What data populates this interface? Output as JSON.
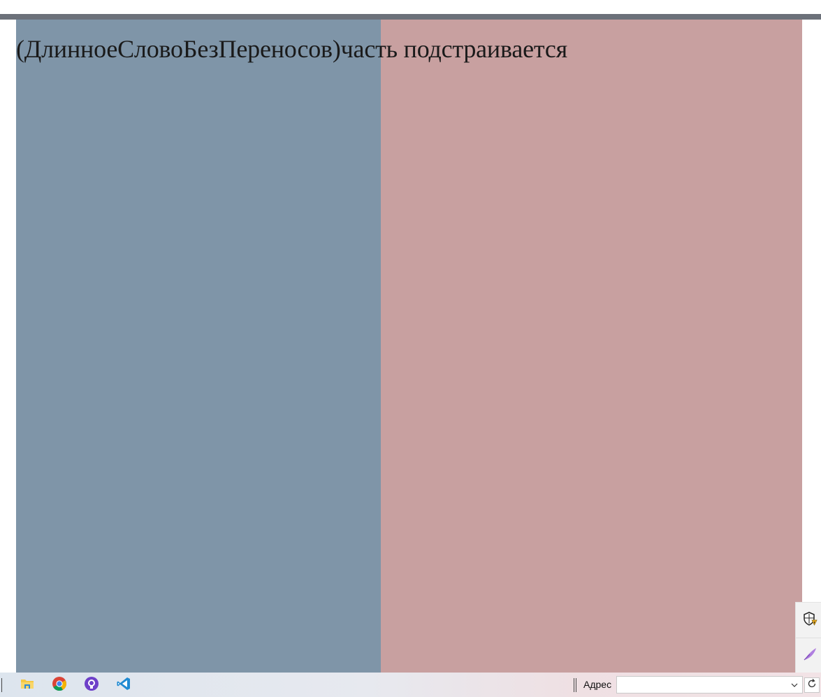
{
  "content": {
    "text": "(ДлинноеСловоБезПереносов)часть подстраивается",
    "colors": {
      "left_column": "#7f95a8",
      "right_column": "#c8a0a0",
      "top_rule": "#6c717a"
    }
  },
  "side_pane": {
    "icons": [
      "shield-warning-icon",
      "feather-pen-icon"
    ]
  },
  "taskbar": {
    "pinned_apps": [
      {
        "name": "file-explorer-icon"
      },
      {
        "name": "chrome-icon"
      },
      {
        "name": "github-desktop-icon"
      },
      {
        "name": "vscode-icon"
      }
    ],
    "address_toolbar": {
      "label": "Адрес",
      "value": "",
      "icons": [
        "chevron-down-icon",
        "refresh-icon"
      ]
    }
  }
}
